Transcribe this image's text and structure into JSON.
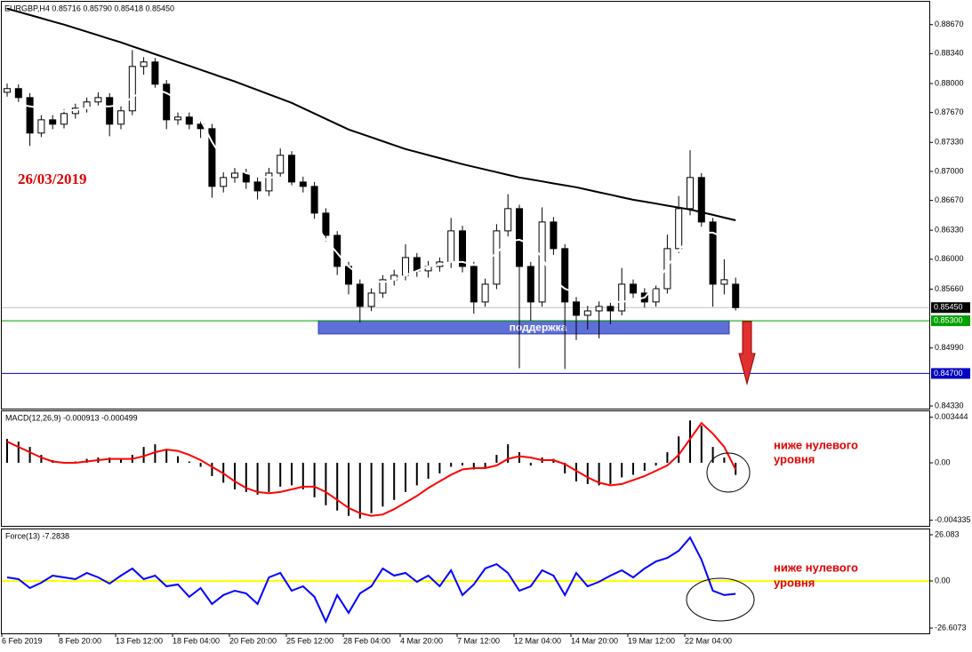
{
  "chart_data": [
    {
      "type": "candlestick",
      "title": "EURGBP,H4  0.85716 0.85790 0.85418 0.85450",
      "annotation": "26/03/2019",
      "categories": [
        "6 Feb 2019",
        null,
        null,
        null,
        null,
        "8 Feb 20:00",
        null,
        null,
        null,
        null,
        "13 Feb 12:00",
        null,
        null,
        null,
        null,
        "18 Feb 04:00",
        null,
        null,
        null,
        null,
        "20 Feb 20:00",
        null,
        null,
        null,
        null,
        "25 Feb 12:00",
        null,
        null,
        null,
        null,
        "28 Feb 04:00",
        null,
        null,
        null,
        null,
        "4 Mar 20:00",
        null,
        null,
        null,
        null,
        "7 Mar 12:00",
        null,
        null,
        null,
        null,
        "12 Mar 04:00",
        null,
        null,
        null,
        null,
        "14 Mar 20:00",
        null,
        null,
        null,
        null,
        "19 Mar 12:00",
        null,
        null,
        null,
        null,
        "22 Mar 04:00",
        null,
        null,
        null,
        null
      ],
      "open": [
        0.879,
        0.87942,
        0.8784,
        0.87436,
        0.87587,
        0.87537,
        0.87658,
        0.87719,
        0.8779,
        0.8784,
        0.87537,
        0.87689,
        0.88194,
        0.88245,
        0.87992,
        0.87587,
        0.87618,
        0.87537,
        0.87486,
        0.86829,
        0.8693,
        0.8698,
        0.86879,
        0.86778,
        0.8698,
        0.87183,
        0.86879,
        0.86829,
        0.86525,
        0.86272,
        0.85918,
        0.85716,
        0.85463,
        0.85615,
        0.85767,
        0.85817,
        0.86019,
        0.85868,
        0.85918,
        0.85969,
        0.86323,
        0.85918,
        0.85514,
        0.85716,
        0.86323,
        0.86576,
        0.85918,
        0.85514,
        0.86424,
        0.86121,
        0.85514,
        0.85362,
        0.85412,
        0.85463,
        0.85412,
        0.85716,
        0.85615,
        0.85514,
        0.85665,
        0.86121,
        0.86576,
        0.8693,
        0.86424,
        0.85716,
        0.85716
      ],
      "high": [
        0.88,
        0.8799,
        0.8789,
        0.8764,
        0.8764,
        0.8771,
        0.8777,
        0.8784,
        0.879,
        0.8789,
        0.8774,
        0.8838,
        0.883,
        0.8829,
        0.8804,
        0.8767,
        0.8767,
        0.876,
        0.8754,
        0.8699,
        0.8704,
        0.8703,
        0.8693,
        0.8704,
        0.8726,
        0.8723,
        0.8694,
        0.8688,
        0.8658,
        0.8632,
        0.8597,
        0.8577,
        0.8567,
        0.8582,
        0.8588,
        0.8617,
        0.8607,
        0.8598,
        0.8602,
        0.8647,
        0.8638,
        0.8597,
        0.8578,
        0.864,
        0.8674,
        0.8662,
        0.8597,
        0.8659,
        0.8648,
        0.8617,
        0.8557,
        0.8547,
        0.8552,
        0.8551,
        0.859,
        0.8577,
        0.8567,
        0.8572,
        0.8628,
        0.8672,
        0.8724,
        0.8698,
        0.8647,
        0.86,
        0.8579
      ],
      "low": [
        0.8785,
        0.8779,
        0.8729,
        0.8739,
        0.8748,
        0.8749,
        0.876,
        0.8767,
        0.8774,
        0.874,
        0.8748,
        0.8764,
        0.881,
        0.8794,
        0.8748,
        0.8753,
        0.8748,
        0.8738,
        0.867,
        0.8676,
        0.8687,
        0.868,
        0.8668,
        0.8672,
        0.8692,
        0.8682,
        0.8676,
        0.8646,
        0.862,
        0.8582,
        0.856,
        0.8528,
        0.8541,
        0.8556,
        0.857,
        0.8576,
        0.858,
        0.8579,
        0.8586,
        0.859,
        0.8585,
        0.8538,
        0.8546,
        0.8566,
        0.8626,
        0.8476,
        0.853,
        0.8546,
        0.8605,
        0.8475,
        0.8508,
        0.852,
        0.851,
        0.8526,
        0.8536,
        0.8556,
        0.8545,
        0.8546,
        0.8561,
        0.8607,
        0.865,
        0.8637,
        0.8546,
        0.856,
        0.85418
      ],
      "close": [
        0.87942,
        0.8784,
        0.87436,
        0.87587,
        0.87537,
        0.87658,
        0.87719,
        0.8779,
        0.8784,
        0.87537,
        0.87689,
        0.88194,
        0.88245,
        0.87992,
        0.87587,
        0.87618,
        0.87537,
        0.87486,
        0.86829,
        0.8693,
        0.8698,
        0.86879,
        0.86778,
        0.8698,
        0.87183,
        0.86879,
        0.86829,
        0.86525,
        0.86272,
        0.85918,
        0.85716,
        0.85463,
        0.85615,
        0.85767,
        0.85817,
        0.86019,
        0.85868,
        0.85918,
        0.85969,
        0.86323,
        0.85918,
        0.85514,
        0.85716,
        0.86323,
        0.86576,
        0.85918,
        0.85514,
        0.86424,
        0.86121,
        0.85514,
        0.85362,
        0.85412,
        0.85463,
        0.85412,
        0.85716,
        0.85615,
        0.85514,
        0.85665,
        0.86121,
        0.86576,
        0.8693,
        0.86424,
        0.85716,
        0.85767,
        0.8545
      ],
      "lines": [
        {
          "color": "#000000",
          "values": [
            0.88852,
            0.88816,
            0.88779,
            0.88743,
            0.88706,
            0.8867,
            0.8863,
            0.88589,
            0.88549,
            0.88508,
            0.88468,
            0.88423,
            0.88379,
            0.88334,
            0.8829,
            0.88245,
            0.88201,
            0.88156,
            0.88112,
            0.88067,
            0.88023,
            0.87974,
            0.87926,
            0.87877,
            0.87829,
            0.8778,
            0.87719,
            0.87658,
            0.87598,
            0.87537,
            0.87476,
            0.87432,
            0.87387,
            0.87343,
            0.87298,
            0.87254,
            0.8722,
            0.87185,
            0.87151,
            0.87116,
            0.87082,
            0.87052,
            0.87021,
            0.86991,
            0.8696,
            0.8693,
            0.86908,
            0.86886,
            0.86863,
            0.86841,
            0.86819,
            0.86791,
            0.86762,
            0.86734,
            0.86705,
            0.86677,
            0.86655,
            0.86633,
            0.8661,
            0.86588,
            0.86566,
            0.86535,
            0.86505,
            0.86474,
            0.86443
          ]
        },
        {
          "color": "#ffffff",
          "values": [
            0.8779,
            0.8777,
            0.87739,
            0.87719,
            0.87689,
            0.87689,
            0.87699,
            0.87719,
            0.87739,
            0.87739,
            0.8776,
            0.8784,
            0.87921,
            0.87942,
            0.87891,
            0.8782,
            0.87739,
            0.87587,
            0.87335,
            0.87132,
            0.87051,
            0.8698,
            0.8695,
            0.8693,
            0.8693,
            0.86829,
            0.86626,
            0.86424,
            0.86222,
            0.8607,
            0.85918,
            0.85817,
            0.85767,
            0.85736,
            0.85767,
            0.85817,
            0.85868,
            0.85918,
            0.85938,
            0.85969,
            0.85969,
            0.85938,
            0.85969,
            0.8607,
            0.86202,
            0.86222,
            0.86171,
            0.86019,
            0.85767,
            0.85665,
            0.85615,
            0.85615,
            0.85564,
            0.85514,
            0.85514,
            0.85534,
            0.85564,
            0.85716,
            0.85918,
            0.861,
            0.86242,
            0.86303,
            0.86303,
            0.86242,
            0.86019
          ]
        }
      ],
      "levels": [
        {
          "value": 0.8545,
          "label": "0.85450",
          "color": "#c0c0c0",
          "label_background": "#000000"
        },
        {
          "value": 0.853,
          "label": "0.85300",
          "color": "#00a000",
          "label_background": "#00a000"
        },
        {
          "value": 0.847,
          "label": "0.84700",
          "color": "#0000c0",
          "label_background": "#0000c0"
        }
      ],
      "zone": {
        "label": "поддержка",
        "from": 0.8515,
        "to": 0.853,
        "color": "#5f6fd8"
      },
      "ylim": [
        0.843,
        0.8892
      ],
      "yticks": [
        {
          "value": 0.8867,
          "label": "0.88670"
        },
        {
          "value": 0.8834,
          "label": "0.88340"
        },
        {
          "value": 0.88,
          "label": "0.88000"
        },
        {
          "value": 0.8767,
          "label": "0.87670"
        },
        {
          "value": 0.8733,
          "label": "0.87330"
        },
        {
          "value": 0.87,
          "label": "0.87000"
        },
        {
          "value": 0.8667,
          "label": "0.86670"
        },
        {
          "value": 0.8633,
          "label": "0.86330"
        },
        {
          "value": 0.86,
          "label": "0.86000"
        },
        {
          "value": 0.8566,
          "label": "0.85660"
        },
        {
          "value": 0.8499,
          "label": "0.84990"
        },
        {
          "value": 0.8433,
          "label": "0.84330"
        }
      ]
    },
    {
      "type": "combo",
      "title": "MACD(12,26,9) -0.000913 -0.000499",
      "annotation": [
        "ниже нулевого",
        "уровня"
      ],
      "series": [
        {
          "type": "bar",
          "color": "#000000",
          "values": [
            0.0018,
            0.0016,
            0.0012,
            0.0006,
            0.0002,
            0,
            0.0001,
            0.0003,
            0.0004,
            0.0004,
            0.0003,
            0.0006,
            0.0012,
            0.0014,
            0.001,
            0.0005,
            0.0001,
            -0.0003,
            -0.001,
            -0.0015,
            -0.002,
            -0.0022,
            -0.0024,
            -0.0022,
            -0.0018,
            -0.0017,
            -0.002,
            -0.0026,
            -0.0032,
            -0.0036,
            -0.004,
            -0.0042,
            -0.0038,
            -0.0033,
            -0.0028,
            -0.0022,
            -0.0017,
            -0.0012,
            -0.0008,
            -0.0003,
            -0.0002,
            -0.0005,
            -0.0004,
            0.0006,
            0.0014,
            0.0008,
            -0.0002,
            0.0004,
            0.0003,
            -0.0008,
            -0.0014,
            -0.0016,
            -0.0017,
            -0.0016,
            -0.0011,
            -0.0009,
            -0.0006,
            -0.0002,
            0.0008,
            0.002,
            0.0032,
            0.0028,
            0.0012,
            0.0004,
            -0.000913
          ]
        },
        {
          "type": "line",
          "color": "#ff0000",
          "values": [
            0.0016,
            0.0012,
            0.0008,
            0.0004,
            0.0001,
            0,
            0,
            0.0001,
            0.0002,
            0.0003,
            0.0003,
            0.0003,
            0.0005,
            0.0008,
            0.001,
            0.0009,
            0.0006,
            0.0002,
            -0.0003,
            -0.0008,
            -0.0014,
            -0.0019,
            -0.0022,
            -0.0023,
            -0.0022,
            -0.002,
            -0.0018,
            -0.0018,
            -0.0022,
            -0.0028,
            -0.0034,
            -0.0038,
            -0.004,
            -0.0039,
            -0.0035,
            -0.003,
            -0.0025,
            -0.0019,
            -0.0014,
            -0.0009,
            -0.0005,
            -0.0004,
            -0.0004,
            -0.0002,
            0.0003,
            0.0005,
            0.0004,
            0.0002,
            0.0002,
            -0.0001,
            -0.0006,
            -0.0011,
            -0.0015,
            -0.0017,
            -0.0016,
            -0.0013,
            -0.001,
            -0.0006,
            -0.0002,
            0.0006,
            0.0018,
            0.003,
            0.0022,
            0.0012,
            -0.000499
          ]
        }
      ],
      "ylim": [
        -0.00469,
        0.00389
      ],
      "yticks": [
        0.003444,
        {
          "value": 0,
          "label": "0.00"
        },
        -0.004335
      ]
    },
    {
      "type": "line",
      "title": "Force(13) -7.2838",
      "annotation": [
        "ниже нулевого",
        "уровня"
      ],
      "series": [
        {
          "type": "line",
          "color": "#0000ff",
          "values": [
            2,
            1,
            -4,
            -1,
            3,
            2,
            1,
            4.5,
            2,
            -1.5,
            3,
            7,
            1,
            3,
            -3,
            -2,
            -9,
            -4,
            -13,
            -8,
            -5.5,
            -7,
            -13,
            2,
            4.5,
            -5.5,
            -3,
            -9,
            -23,
            -8,
            -18,
            -7,
            -3,
            7,
            3,
            4.5,
            -0.5,
            3,
            -3,
            6,
            -8,
            -2,
            7,
            9.5,
            4.5,
            -5.5,
            -3,
            6,
            3,
            -8,
            4.5,
            -3,
            -0.5,
            3,
            6,
            2,
            7,
            11,
            13,
            17,
            24.5,
            12,
            -5.5,
            -8,
            -7.2838
          ]
        }
      ],
      "zero_line_color": "#ffff00",
      "ylim": [
        -29.1,
        29.1
      ],
      "yticks": [
        26.083,
        {
          "value": 0,
          "label": "0.00"
        },
        -26.6073
      ]
    }
  ]
}
